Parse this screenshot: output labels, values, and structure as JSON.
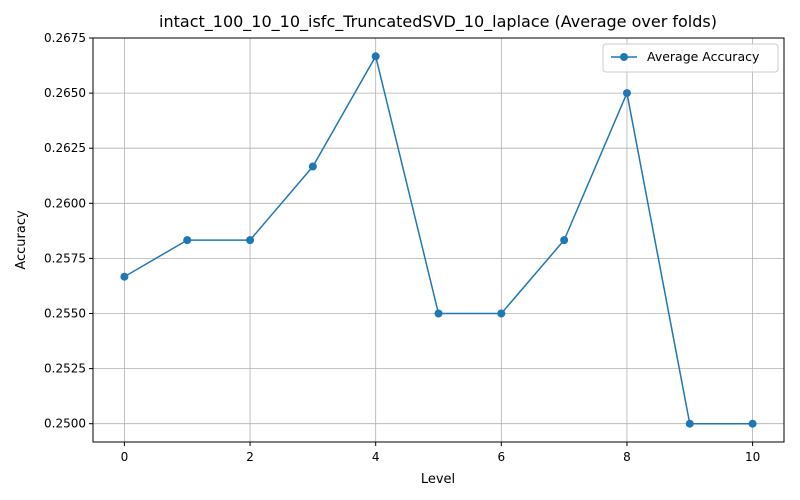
{
  "chart_data": {
    "type": "line",
    "title": "intact_100_10_10_isfc_TruncatedSVD_10_laplace (Average over folds)",
    "xlabel": "Level",
    "ylabel": "Accuracy",
    "xlim": [
      -0.5,
      10.5
    ],
    "ylim": [
      0.24917,
      0.2675
    ],
    "xticks": [
      0,
      2,
      4,
      6,
      8,
      10
    ],
    "xtick_labels": [
      "0",
      "2",
      "4",
      "6",
      "8",
      "10"
    ],
    "yticks": [
      0.25,
      0.2525,
      0.255,
      0.2575,
      0.26,
      0.2625,
      0.265,
      0.2675
    ],
    "ytick_labels": [
      "0.2500",
      "0.2525",
      "0.2550",
      "0.2575",
      "0.2600",
      "0.2625",
      "0.2650",
      "0.2675"
    ],
    "grid": true,
    "legend_position": "top-right",
    "series": [
      {
        "name": "Average Accuracy",
        "color": "#1f77b4",
        "marker": "circle",
        "x": [
          0,
          1,
          2,
          3,
          4,
          5,
          6,
          7,
          8,
          9,
          10
        ],
        "y": [
          0.25667,
          0.25833,
          0.25833,
          0.26167,
          0.26667,
          0.255,
          0.255,
          0.25833,
          0.265,
          0.25,
          0.25
        ]
      }
    ]
  }
}
